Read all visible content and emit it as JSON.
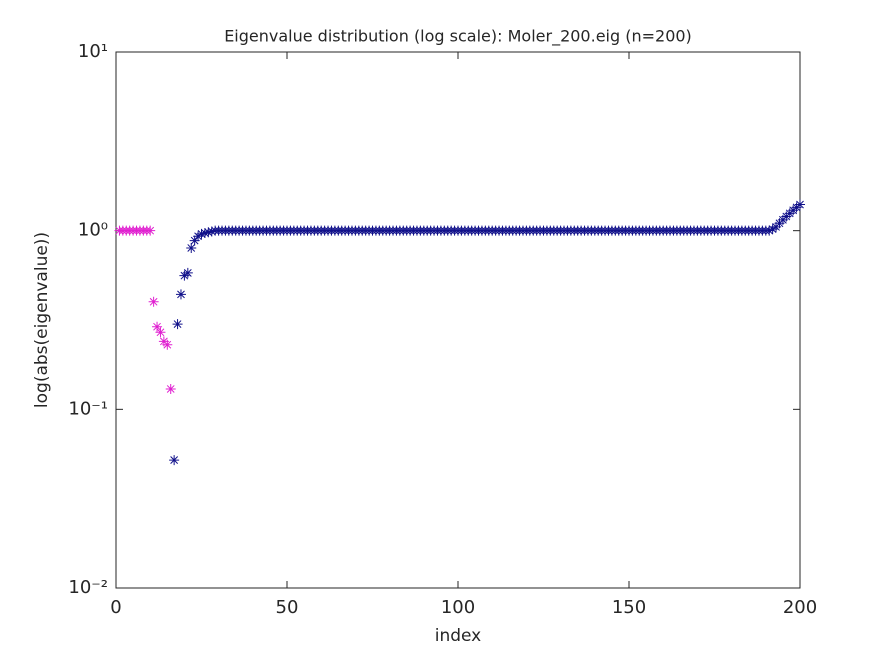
{
  "chart_data": {
    "type": "scatter",
    "title": "Eigenvalue distribution (log scale): Moler_200.eig (n=200)",
    "xlabel": "index",
    "ylabel": "log(abs(eigenvalue))",
    "xlim": [
      0,
      200
    ],
    "xticks": [
      0,
      50,
      100,
      150,
      200
    ],
    "ylim": [
      0.01,
      10
    ],
    "log_y": true,
    "yticks": [
      {
        "value": 0.01,
        "label": "10⁻²"
      },
      {
        "value": 0.1,
        "label": "10⁻¹"
      },
      {
        "value": 1,
        "label": "10⁰"
      },
      {
        "value": 10,
        "label": "10¹"
      }
    ],
    "grid": false,
    "marker": "asterisk",
    "series": [
      {
        "color": "#e020d0",
        "x": [
          1,
          2,
          3,
          4,
          5,
          6,
          7,
          8,
          9,
          10,
          11,
          12,
          13,
          14,
          15,
          16
        ],
        "values": [
          1,
          1,
          1,
          1,
          1,
          1,
          1,
          1,
          1,
          1,
          0.4,
          0.29,
          0.27,
          0.24,
          0.23,
          0.13
        ]
      },
      {
        "color": "#10108a",
        "x": [
          17,
          18,
          19,
          20,
          21,
          22,
          23,
          24,
          25,
          26,
          27,
          28,
          29,
          30,
          31,
          32,
          33,
          34,
          35,
          36,
          37,
          38,
          39,
          40,
          41,
          42,
          43,
          44,
          45,
          46,
          47,
          48,
          49,
          50,
          51,
          52,
          53,
          54,
          55,
          56,
          57,
          58,
          59,
          60,
          61,
          62,
          63,
          64,
          65,
          66,
          67,
          68,
          69,
          70,
          71,
          72,
          73,
          74,
          75,
          76,
          77,
          78,
          79,
          80,
          81,
          82,
          83,
          84,
          85,
          86,
          87,
          88,
          89,
          90,
          91,
          92,
          93,
          94,
          95,
          96,
          97,
          98,
          99,
          100,
          101,
          102,
          103,
          104,
          105,
          106,
          107,
          108,
          109,
          110,
          111,
          112,
          113,
          114,
          115,
          116,
          117,
          118,
          119,
          120,
          121,
          122,
          123,
          124,
          125,
          126,
          127,
          128,
          129,
          130,
          131,
          132,
          133,
          134,
          135,
          136,
          137,
          138,
          139,
          140,
          141,
          142,
          143,
          144,
          145,
          146,
          147,
          148,
          149,
          150,
          151,
          152,
          153,
          154,
          155,
          156,
          157,
          158,
          159,
          160,
          161,
          162,
          163,
          164,
          165,
          166,
          167,
          168,
          169,
          170,
          171,
          172,
          173,
          174,
          175,
          176,
          177,
          178,
          179,
          180,
          181,
          182,
          183,
          184,
          185,
          186,
          187,
          188,
          189,
          190,
          191,
          192,
          193,
          194,
          195,
          196,
          197,
          198,
          199,
          200
        ],
        "values": [
          0.052,
          0.3,
          0.44,
          0.56,
          0.58,
          0.8,
          0.88,
          0.93,
          0.96,
          0.97,
          0.98,
          0.99,
          1,
          1,
          1,
          1,
          1,
          1,
          1,
          1,
          1,
          1,
          1,
          1,
          1,
          1,
          1,
          1,
          1,
          1,
          1,
          1,
          1,
          1,
          1,
          1,
          1,
          1,
          1,
          1,
          1,
          1,
          1,
          1,
          1,
          1,
          1,
          1,
          1,
          1,
          1,
          1,
          1,
          1,
          1,
          1,
          1,
          1,
          1,
          1,
          1,
          1,
          1,
          1,
          1,
          1,
          1,
          1,
          1,
          1,
          1,
          1,
          1,
          1,
          1,
          1,
          1,
          1,
          1,
          1,
          1,
          1,
          1,
          1,
          1,
          1,
          1,
          1,
          1,
          1,
          1,
          1,
          1,
          1,
          1,
          1,
          1,
          1,
          1,
          1,
          1,
          1,
          1,
          1,
          1,
          1,
          1,
          1,
          1,
          1,
          1,
          1,
          1,
          1,
          1,
          1,
          1,
          1,
          1,
          1,
          1,
          1,
          1,
          1,
          1,
          1,
          1,
          1,
          1,
          1,
          1,
          1,
          1,
          1,
          1,
          1,
          1,
          1,
          1,
          1,
          1,
          1,
          1,
          1,
          1,
          1,
          1,
          1,
          1,
          1,
          1,
          1,
          1,
          1,
          1,
          1,
          1,
          1,
          1,
          1,
          1,
          1,
          1,
          1,
          1,
          1,
          1,
          1,
          1,
          1,
          1,
          1,
          1,
          1,
          1,
          1.02,
          1.05,
          1.1,
          1.15,
          1.2,
          1.25,
          1.3,
          1.35,
          1.4
        ]
      }
    ]
  }
}
